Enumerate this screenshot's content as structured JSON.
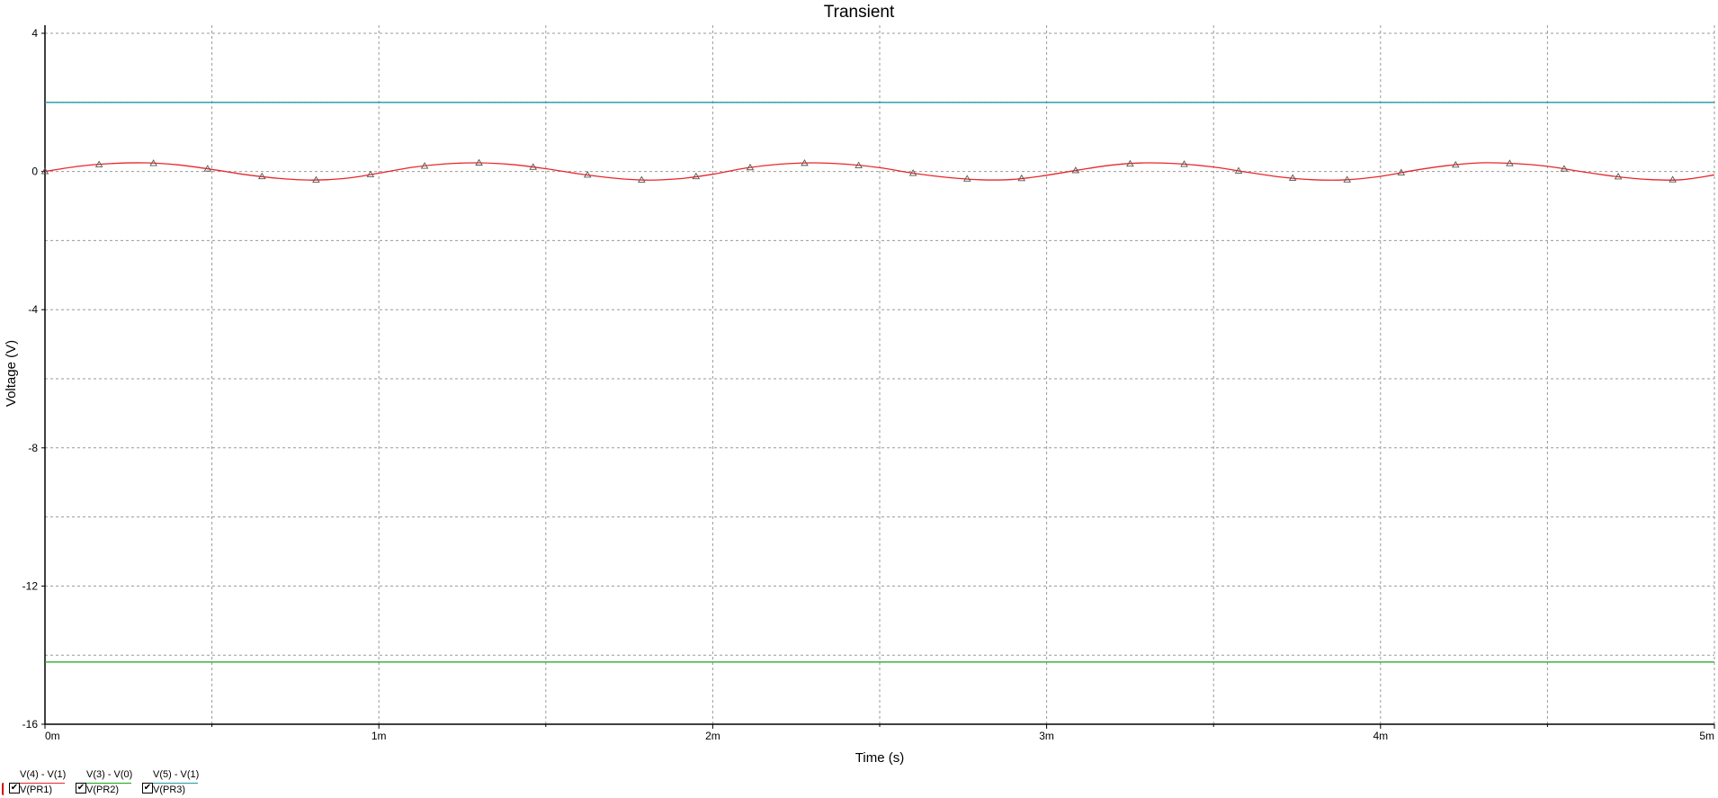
{
  "chart_data": {
    "type": "line",
    "title": "Transient",
    "xlabel": "Time (s)",
    "ylabel": "Voltage (V)",
    "xlim": [
      0,
      0.005
    ],
    "ylim": [
      -16,
      4
    ],
    "x_ticks": [
      {
        "value": 0,
        "label": "0m"
      },
      {
        "value": 0.001,
        "label": "1m"
      },
      {
        "value": 0.002,
        "label": "2m"
      },
      {
        "value": 0.003,
        "label": "3m"
      },
      {
        "value": 0.004,
        "label": "4m"
      },
      {
        "value": 0.005,
        "label": "5m"
      }
    ],
    "y_ticks": [
      {
        "value": 4,
        "label": "4"
      },
      {
        "value": 0,
        "label": "0"
      },
      {
        "value": -4,
        "label": "-4"
      },
      {
        "value": -8,
        "label": "-8"
      },
      {
        "value": -12,
        "label": "-12"
      },
      {
        "value": -16,
        "label": "-16"
      }
    ],
    "grid": true,
    "series": [
      {
        "name": "V(PR1)",
        "expression": "V(4) - V(1)",
        "color": "#e8272b",
        "marker": "triangle",
        "x": [
          0,
          0.0001,
          0.0002,
          0.0003,
          0.0004,
          0.0005,
          0.0006,
          0.0007,
          0.0008,
          0.0009,
          0.001,
          0.0011,
          0.0012,
          0.0013,
          0.0014,
          0.0015,
          0.0016,
          0.0017,
          0.0018,
          0.0019,
          0.002,
          0.0021,
          0.0022,
          0.0023,
          0.0024,
          0.0025,
          0.0026,
          0.0027,
          0.0028,
          0.0029,
          0.003,
          0.0031,
          0.0032,
          0.0033,
          0.0034,
          0.0035,
          0.0036,
          0.0037,
          0.0038,
          0.0039,
          0.004,
          0.0041,
          0.0042,
          0.0043,
          0.0044,
          0.0045,
          0.0046,
          0.0047,
          0.0048,
          0.0049,
          0.005
        ],
        "y": [
          0,
          0.15,
          0.23,
          0.25,
          0.19,
          0.06,
          -0.09,
          -0.2,
          -0.25,
          -0.2,
          -0.05,
          0.12,
          0.22,
          0.25,
          0.2,
          0.08,
          -0.07,
          -0.19,
          -0.25,
          -0.21,
          -0.08,
          0.1,
          0.21,
          0.25,
          0.21,
          0.11,
          -0.05,
          -0.17,
          -0.24,
          -0.23,
          -0.11,
          0.05,
          0.19,
          0.25,
          0.22,
          0.13,
          -0.02,
          -0.16,
          -0.24,
          -0.24,
          -0.14,
          0.03,
          0.17,
          0.25,
          0.23,
          0.15,
          0,
          -0.14,
          -0.23,
          -0.24,
          -0.1
        ],
        "marker_x": [
          0,
          0.000162,
          0.000325,
          0.000487,
          0.00065,
          0.000812,
          0.000975,
          0.001137,
          0.0013,
          0.001462,
          0.001625,
          0.001787,
          0.00195,
          0.002112,
          0.002275,
          0.002437,
          0.0026,
          0.002762,
          0.002925,
          0.003087,
          0.00325,
          0.003412,
          0.003575,
          0.003737,
          0.0039,
          0.004062,
          0.004225,
          0.004387,
          0.00455,
          0.004712,
          0.004875
        ]
      },
      {
        "name": "V(PR2)",
        "expression": "V(3) - V(0)",
        "color": "#1aa31a",
        "x": [
          0,
          0.005
        ],
        "y": [
          -14.2,
          -14.2
        ]
      },
      {
        "name": "V(PR3)",
        "expression": "V(5) - V(1)",
        "color": "#1f9aa8",
        "x": [
          0,
          0.005
        ],
        "y": [
          2.0,
          2.0
        ]
      }
    ]
  },
  "legend": [
    {
      "top": "V(4) - V(1)",
      "bottom": "V(PR1)",
      "checked": "✔",
      "color": "#e8272b"
    },
    {
      "top": "V(3) - V(0)",
      "bottom": "V(PR2)",
      "checked": "✔",
      "color": "#1aa31a"
    },
    {
      "top": "V(5) - V(1)",
      "bottom": "V(PR3)",
      "checked": "✔",
      "color": "#1f9aa8"
    }
  ]
}
